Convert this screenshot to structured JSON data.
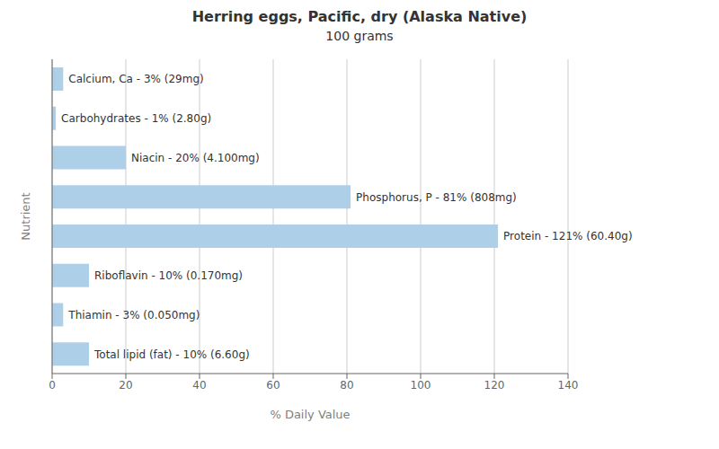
{
  "chart_data": {
    "type": "bar",
    "orientation": "horizontal",
    "title": "Herring eggs, Pacific, dry (Alaska Native)",
    "subtitle": "100 grams",
    "categories": [
      "Calcium, Ca - 3% (29mg)",
      "Carbohydrates - 1% (2.80g)",
      "Niacin - 20% (4.100mg)",
      "Phosphorus, P - 81% (808mg)",
      "Protein - 121% (60.40g)",
      "Riboflavin - 10% (0.170mg)",
      "Thiamin - 3% (0.050mg)",
      "Total lipid (fat) - 10% (6.60g)"
    ],
    "values": [
      3,
      1,
      20,
      81,
      121,
      10,
      3,
      10
    ],
    "color": "#aecfe8",
    "xlabel": "% Daily Value",
    "ylabel": "Nutrient",
    "xlim": [
      0,
      140
    ],
    "xticks": [
      0,
      20,
      40,
      60,
      80,
      100,
      120,
      140
    ],
    "grid": true,
    "tick_labels": "x"
  }
}
